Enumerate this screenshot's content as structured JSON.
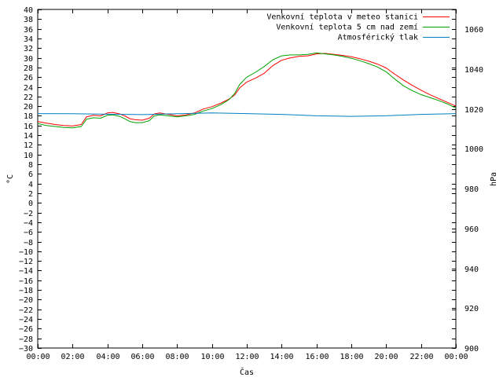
{
  "chart_data": {
    "type": "line",
    "xlabel": "Čas",
    "ylabel": "°C",
    "y2label": "hPa",
    "x_ticks": [
      "00:00",
      "02:00",
      "04:00",
      "06:00",
      "08:00",
      "10:00",
      "12:00",
      "14:00",
      "16:00",
      "18:00",
      "20:00",
      "22:00",
      "00:00"
    ],
    "x_range_hours": [
      0,
      24
    ],
    "ylim": [
      -30,
      40
    ],
    "y_tick_step": 2,
    "y2lim": [
      900,
      1070
    ],
    "y2_ticks": [
      900,
      920,
      940,
      960,
      980,
      1000,
      1020,
      1040,
      1060
    ],
    "grid": false,
    "legend_position": "top-right",
    "series": [
      {
        "name": "Venkovní teplota v meteo stanici",
        "axis": "y",
        "color": "#ff0000",
        "points": [
          [
            0,
            16.8
          ],
          [
            0.5,
            16.5
          ],
          [
            1.0,
            16.2
          ],
          [
            1.5,
            16.0
          ],
          [
            2.0,
            15.9
          ],
          [
            2.5,
            16.2
          ],
          [
            2.8,
            17.8
          ],
          [
            3.2,
            18.1
          ],
          [
            3.6,
            18.0
          ],
          [
            4.0,
            18.6
          ],
          [
            4.3,
            18.7
          ],
          [
            4.7,
            18.4
          ],
          [
            5.0,
            18.0
          ],
          [
            5.3,
            17.4
          ],
          [
            5.6,
            17.2
          ],
          [
            6.0,
            17.1
          ],
          [
            6.4,
            17.5
          ],
          [
            6.7,
            18.4
          ],
          [
            7.0,
            18.6
          ],
          [
            7.5,
            18.3
          ],
          [
            8.0,
            18.0
          ],
          [
            8.5,
            18.2
          ],
          [
            9.0,
            18.6
          ],
          [
            9.5,
            19.4
          ],
          [
            10.0,
            19.9
          ],
          [
            10.5,
            20.6
          ],
          [
            11.0,
            21.5
          ],
          [
            11.3,
            22.3
          ],
          [
            11.6,
            23.8
          ],
          [
            12.0,
            25.0
          ],
          [
            12.5,
            25.8
          ],
          [
            13.0,
            26.8
          ],
          [
            13.5,
            28.4
          ],
          [
            14.0,
            29.5
          ],
          [
            14.5,
            30.0
          ],
          [
            15.0,
            30.3
          ],
          [
            15.5,
            30.4
          ],
          [
            16.0,
            30.8
          ],
          [
            16.5,
            30.9
          ],
          [
            17.0,
            30.7
          ],
          [
            17.5,
            30.5
          ],
          [
            18.0,
            30.2
          ],
          [
            18.5,
            29.8
          ],
          [
            19.0,
            29.3
          ],
          [
            19.5,
            28.7
          ],
          [
            20.0,
            27.9
          ],
          [
            20.5,
            26.6
          ],
          [
            21.0,
            25.4
          ],
          [
            21.5,
            24.3
          ],
          [
            22.0,
            23.3
          ],
          [
            22.5,
            22.4
          ],
          [
            23.0,
            21.6
          ],
          [
            23.5,
            20.8
          ],
          [
            24.0,
            20.0
          ]
        ]
      },
      {
        "name": "Venkovní teplota 5 cm nad zemí",
        "axis": "y",
        "color": "#00a000",
        "points": [
          [
            0,
            16.4
          ],
          [
            0.5,
            16.0
          ],
          [
            1.0,
            15.8
          ],
          [
            1.5,
            15.6
          ],
          [
            2.0,
            15.5
          ],
          [
            2.5,
            15.8
          ],
          [
            2.8,
            17.3
          ],
          [
            3.2,
            17.6
          ],
          [
            3.6,
            17.5
          ],
          [
            4.0,
            18.1
          ],
          [
            4.3,
            18.2
          ],
          [
            4.7,
            17.9
          ],
          [
            5.0,
            17.4
          ],
          [
            5.3,
            16.8
          ],
          [
            5.6,
            16.6
          ],
          [
            6.0,
            16.6
          ],
          [
            6.4,
            17.0
          ],
          [
            6.7,
            18.0
          ],
          [
            7.0,
            18.2
          ],
          [
            7.5,
            18.0
          ],
          [
            8.0,
            17.8
          ],
          [
            8.5,
            18.0
          ],
          [
            9.0,
            18.3
          ],
          [
            9.5,
            19.0
          ],
          [
            10.0,
            19.5
          ],
          [
            10.5,
            20.3
          ],
          [
            11.0,
            21.4
          ],
          [
            11.3,
            22.6
          ],
          [
            11.6,
            24.5
          ],
          [
            12.0,
            26.0
          ],
          [
            12.5,
            27.0
          ],
          [
            13.0,
            28.2
          ],
          [
            13.5,
            29.6
          ],
          [
            14.0,
            30.4
          ],
          [
            14.5,
            30.6
          ],
          [
            15.0,
            30.6
          ],
          [
            15.5,
            30.7
          ],
          [
            16.0,
            31.0
          ],
          [
            16.5,
            30.8
          ],
          [
            17.0,
            30.6
          ],
          [
            17.5,
            30.3
          ],
          [
            18.0,
            29.9
          ],
          [
            18.5,
            29.4
          ],
          [
            19.0,
            28.8
          ],
          [
            19.5,
            28.1
          ],
          [
            20.0,
            27.1
          ],
          [
            20.5,
            25.6
          ],
          [
            21.0,
            24.2
          ],
          [
            21.5,
            23.2
          ],
          [
            22.0,
            22.4
          ],
          [
            22.5,
            21.8
          ],
          [
            23.0,
            21.2
          ],
          [
            23.5,
            20.5
          ],
          [
            24.0,
            19.6
          ]
        ]
      },
      {
        "name": "Atmosférický tlak",
        "axis": "y2",
        "color": "#0080c0",
        "points": [
          [
            0,
            1017.7
          ],
          [
            2,
            1017.6
          ],
          [
            4,
            1017.4
          ],
          [
            6,
            1017.2
          ],
          [
            8,
            1017.6
          ],
          [
            10,
            1018.0
          ],
          [
            12,
            1017.7
          ],
          [
            14,
            1017.3
          ],
          [
            16,
            1016.6
          ],
          [
            18,
            1016.3
          ],
          [
            20,
            1016.6
          ],
          [
            22,
            1017.3
          ],
          [
            24,
            1017.7
          ]
        ]
      }
    ]
  }
}
